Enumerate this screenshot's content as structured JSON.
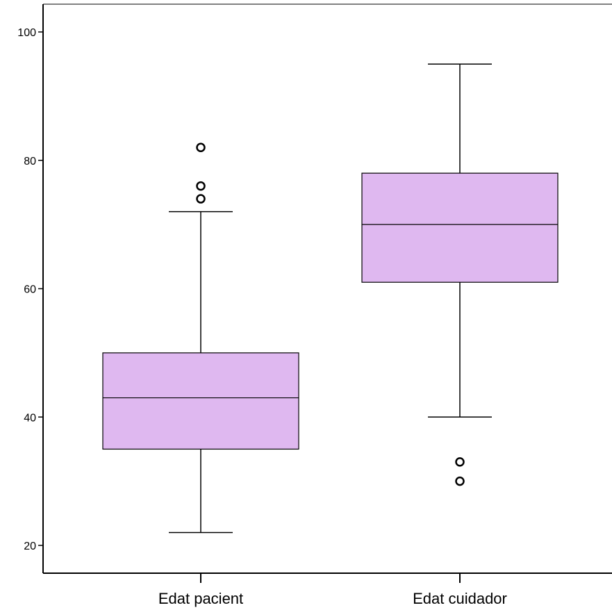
{
  "chart_data": {
    "type": "box",
    "title": "",
    "xlabel": "",
    "ylabel": "",
    "ylim": [
      15.5,
      105
    ],
    "yticks": [
      20,
      40,
      60,
      80,
      100
    ],
    "categories": [
      "Edat pacient",
      "Edat cuidador"
    ],
    "boxes": [
      {
        "category": "Edat pacient",
        "whisker_low": 22,
        "q1": 35,
        "median": 43,
        "q3": 50,
        "whisker_high": 72,
        "outliers": [
          74,
          76,
          82
        ]
      },
      {
        "category": "Edat cuidador",
        "whisker_low": 40,
        "q1": 61,
        "median": 70,
        "q3": 78,
        "whisker_high": 95,
        "outliers": [
          30,
          33
        ]
      }
    ],
    "box_color": "#dfb8f0",
    "line_color": "#000000",
    "grid": false
  }
}
